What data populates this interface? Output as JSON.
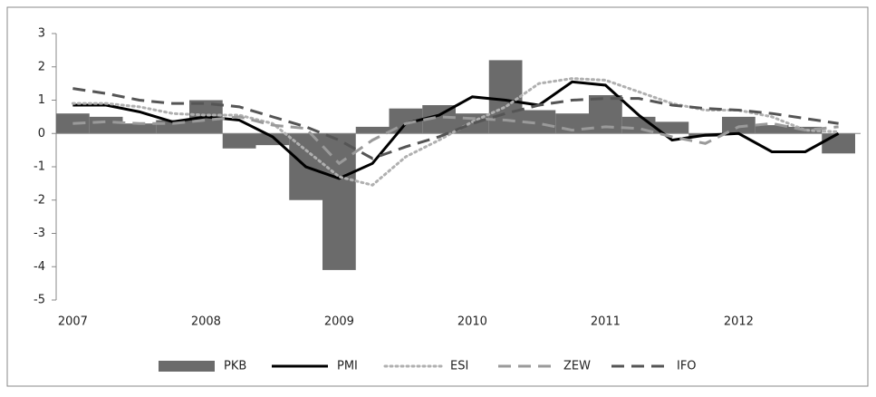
{
  "chart_data": {
    "type": "bar",
    "categories": [
      "2007",
      null,
      null,
      null,
      "2008",
      null,
      null,
      null,
      "2009",
      null,
      null,
      null,
      "2010",
      null,
      null,
      null,
      "2011",
      null,
      null,
      null,
      "2012",
      null,
      null,
      null
    ],
    "ylim": [
      -5,
      3
    ],
    "yticks": [
      -5,
      -4,
      -3,
      -2,
      -1,
      0,
      1,
      2,
      3
    ],
    "legend": "bottom",
    "series": [
      {
        "name": "PKB",
        "type": "bar",
        "color": "#6b6b6b",
        "values": [
          0.6,
          0.5,
          0.3,
          0.4,
          1.0,
          -0.45,
          -0.35,
          -2.0,
          -4.1,
          0.2,
          0.75,
          0.85,
          0.6,
          2.2,
          0.7,
          0.6,
          1.15,
          0.5,
          0.35,
          -0.1,
          0.5,
          0.25,
          0.2,
          -0.6
        ]
      },
      {
        "name": "PMI",
        "type": "line",
        "color": "#000000",
        "dash": "solid",
        "values": [
          0.85,
          0.85,
          0.65,
          0.35,
          0.5,
          0.4,
          -0.1,
          -1.0,
          -1.35,
          -0.9,
          0.3,
          0.55,
          1.1,
          1.0,
          0.85,
          1.55,
          1.45,
          0.55,
          -0.2,
          -0.05,
          0.0,
          -0.55,
          -0.55,
          0.0
        ]
      },
      {
        "name": "ESI",
        "type": "line",
        "color": "#b0b0b0",
        "dash": "dotted",
        "values": [
          0.9,
          0.9,
          0.8,
          0.6,
          0.55,
          0.55,
          0.3,
          -0.5,
          -1.3,
          -1.55,
          -0.7,
          -0.2,
          0.35,
          0.8,
          1.5,
          1.65,
          1.6,
          1.25,
          0.9,
          0.7,
          0.7,
          0.5,
          0.1,
          0.05
        ]
      },
      {
        "name": "ZEW",
        "type": "line",
        "color": "#9a9a9a",
        "dash": "dashed",
        "values": [
          0.3,
          0.35,
          0.3,
          0.3,
          0.4,
          0.5,
          0.25,
          0.15,
          -0.9,
          -0.2,
          0.3,
          0.5,
          0.45,
          0.4,
          0.3,
          0.1,
          0.2,
          0.15,
          -0.1,
          -0.3,
          0.2,
          0.3,
          0.1,
          0.2
        ]
      },
      {
        "name": "IFO",
        "type": "line",
        "color": "#555555",
        "dash": "dashed",
        "values": [
          1.35,
          1.2,
          1.0,
          0.9,
          0.9,
          0.8,
          0.5,
          0.2,
          -0.2,
          -0.75,
          -0.4,
          -0.1,
          0.3,
          0.6,
          0.85,
          1.0,
          1.05,
          1.05,
          0.85,
          0.75,
          0.7,
          0.6,
          0.45,
          0.3
        ]
      }
    ]
  }
}
